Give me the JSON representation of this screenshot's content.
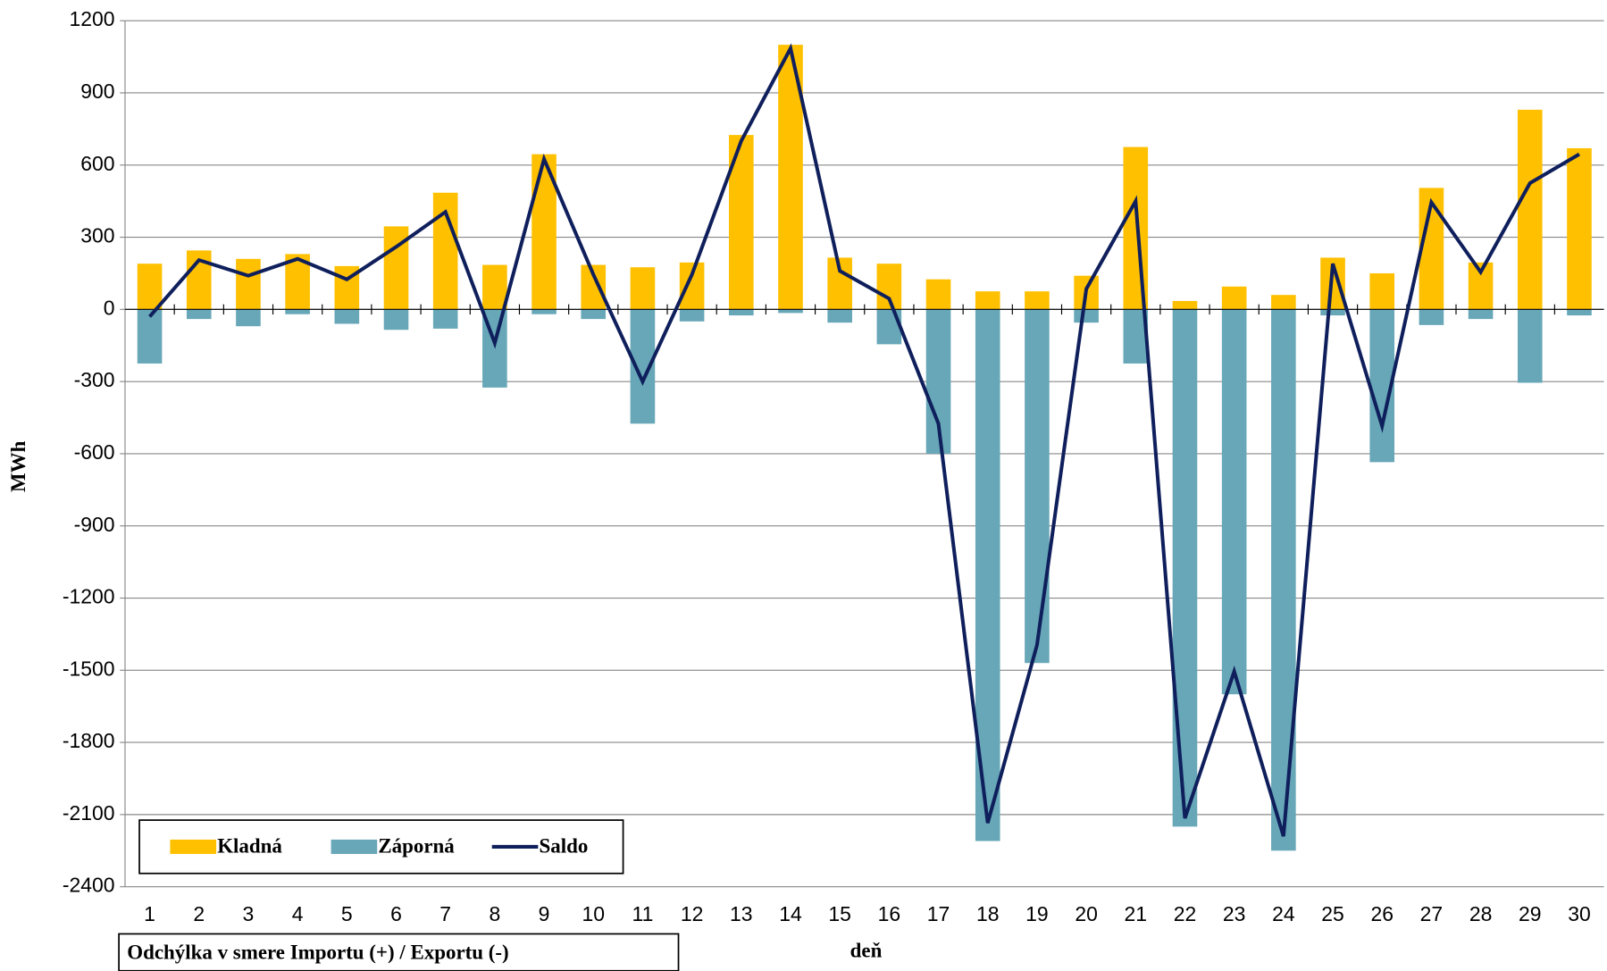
{
  "chart_data": {
    "type": "bar",
    "title": "Odchýlka v smere Importu (+) / Exportu (-)",
    "x_label": "deň",
    "y_label": "MWh",
    "categories": [
      "1",
      "2",
      "3",
      "4",
      "5",
      "6",
      "7",
      "8",
      "9",
      "10",
      "11",
      "12",
      "13",
      "14",
      "15",
      "16",
      "17",
      "18",
      "19",
      "20",
      "21",
      "22",
      "23",
      "24",
      "25",
      "26",
      "27",
      "28",
      "29",
      "30"
    ],
    "series": [
      {
        "name": "Kladná",
        "type": "bar",
        "color": "#FFC000",
        "values": [
          190,
          245,
          210,
          230,
          180,
          345,
          485,
          185,
          645,
          185,
          175,
          195,
          725,
          1100,
          215,
          190,
          125,
          75,
          75,
          140,
          675,
          35,
          95,
          60,
          215,
          150,
          505,
          195,
          830,
          670
        ]
      },
      {
        "name": "Záporná",
        "type": "bar",
        "color": "#67A7B8",
        "values": [
          -225,
          -40,
          -70,
          -20,
          -60,
          -85,
          -80,
          -325,
          -20,
          -40,
          -475,
          -50,
          -25,
          -15,
          -55,
          -145,
          -600,
          -2210,
          -1470,
          -55,
          -225,
          -2150,
          -1600,
          -2250,
          -25,
          -635,
          -65,
          -40,
          -305,
          -25
        ]
      },
      {
        "name": "Saldo",
        "type": "line",
        "color": "#0F1F5C",
        "values": [
          -30,
          205,
          140,
          210,
          125,
          260,
          405,
          -140,
          625,
          145,
          -300,
          145,
          700,
          1085,
          160,
          45,
          -475,
          -2135,
          -1395,
          85,
          450,
          -2115,
          -1505,
          -2190,
          190,
          -485,
          445,
          155,
          525,
          645
        ]
      }
    ],
    "ylim": [
      -2400,
      1200
    ],
    "yticks": [
      -2400,
      -2100,
      -1800,
      -1500,
      -1200,
      -900,
      -600,
      -300,
      0,
      300,
      600,
      900,
      1200
    ],
    "grid": true,
    "legend": "lower left"
  }
}
